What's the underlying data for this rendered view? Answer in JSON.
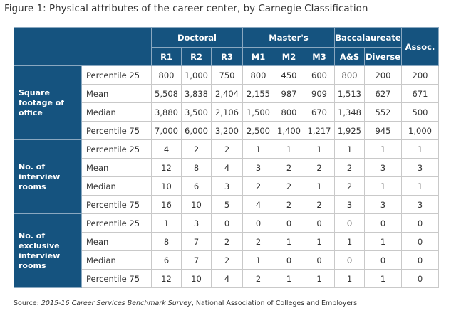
{
  "title": "Figure 1: Physical attributes of the career center, by Carnegie Classification",
  "table": {
    "groups": [
      "Doctoral",
      "Master's",
      "Baccalaureate",
      "Assoc."
    ],
    "columns": [
      "R1",
      "R2",
      "R3",
      "M1",
      "M2",
      "M3",
      "A&S",
      "Diverse"
    ],
    "sections": [
      {
        "label": "Square footage of office",
        "rows": [
          {
            "stat": "Percentile 25",
            "values": [
              "800",
              "1,000",
              "750",
              "800",
              "450",
              "600",
              "800",
              "200",
              "200"
            ]
          },
          {
            "stat": "Mean",
            "values": [
              "5,508",
              "3,838",
              "2,404",
              "2,155",
              "987",
              "909",
              "1,513",
              "627",
              "671"
            ]
          },
          {
            "stat": "Median",
            "values": [
              "3,880",
              "3,500",
              "2,106",
              "1,500",
              "800",
              "670",
              "1,348",
              "552",
              "500"
            ]
          },
          {
            "stat": "Percentile 75",
            "values": [
              "7,000",
              "6,000",
              "3,200",
              "2,500",
              "1,400",
              "1,217",
              "1,925",
              "945",
              "1,000"
            ]
          }
        ]
      },
      {
        "label": "No. of interview rooms",
        "rows": [
          {
            "stat": "Percentile 25",
            "values": [
              "4",
              "2",
              "2",
              "1",
              "1",
              "1",
              "1",
              "1",
              "1"
            ]
          },
          {
            "stat": "Mean",
            "values": [
              "12",
              "8",
              "4",
              "3",
              "2",
              "2",
              "2",
              "3",
              "3"
            ]
          },
          {
            "stat": "Median",
            "values": [
              "10",
              "6",
              "3",
              "2",
              "2",
              "1",
              "2",
              "1",
              "1"
            ]
          },
          {
            "stat": "Percentile 75",
            "values": [
              "16",
              "10",
              "5",
              "4",
              "2",
              "2",
              "3",
              "3",
              "3"
            ]
          }
        ]
      },
      {
        "label": "No. of exclusive interview rooms",
        "rows": [
          {
            "stat": "Percentile 25",
            "values": [
              "1",
              "3",
              "0",
              "0",
              "0",
              "0",
              "0",
              "0",
              "0"
            ]
          },
          {
            "stat": "Mean",
            "values": [
              "8",
              "7",
              "2",
              "2",
              "1",
              "1",
              "1",
              "1",
              "0"
            ]
          },
          {
            "stat": "Median",
            "values": [
              "6",
              "7",
              "2",
              "1",
              "0",
              "0",
              "0",
              "0",
              "0"
            ]
          },
          {
            "stat": "Percentile 75",
            "values": [
              "12",
              "10",
              "4",
              "2",
              "1",
              "1",
              "1",
              "1",
              "0"
            ]
          }
        ]
      }
    ]
  },
  "source": {
    "prefix": "Source: ",
    "italic": "2015-16 Career Services Benchmark Survey",
    "suffix": ", National Association of Colleges and Employers"
  },
  "colors": {
    "header_bg": "#15537f",
    "header_text": "#ffffff",
    "border": "#c9c9c9"
  }
}
